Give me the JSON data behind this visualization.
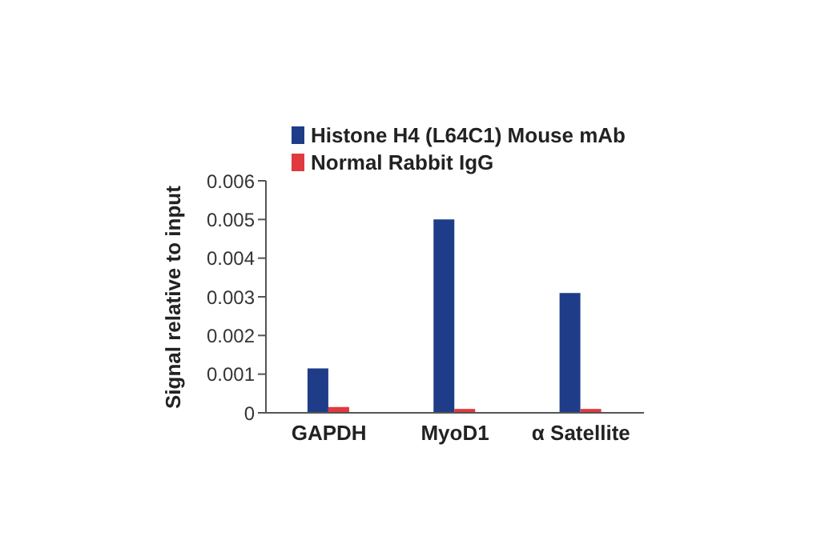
{
  "chart_data": {
    "type": "bar",
    "ylabel": "Signal relative to input",
    "categories": [
      "GAPDH",
      "MyoD1",
      "α Satellite"
    ],
    "series": [
      {
        "name": "Histone H4 (L64C1) Mouse mAb",
        "color": "#1f3c88",
        "values": [
          0.00115,
          0.005,
          0.0031
        ]
      },
      {
        "name": "Normal Rabbit IgG",
        "color": "#e0393e",
        "values": [
          0.00015,
          0.0001,
          0.0001
        ]
      }
    ],
    "ylim": [
      0,
      0.006
    ],
    "yticks": [
      0,
      0.001,
      0.002,
      0.003,
      0.004,
      0.005,
      0.006
    ],
    "grid": false,
    "legend": "top left"
  }
}
